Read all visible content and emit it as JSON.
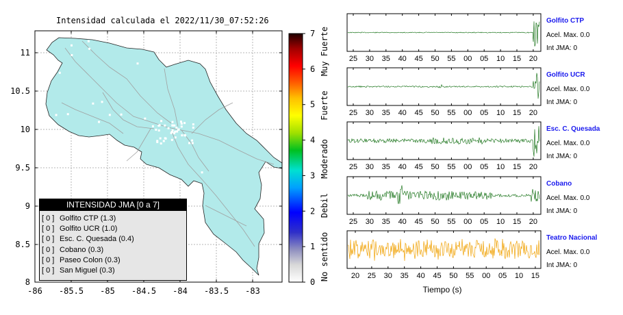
{
  "map": {
    "title": "Intensidad calculada el 2022/11/30_07:52:26",
    "x_ticks": [
      "-86",
      "-85.5",
      "-85",
      "-84.5",
      "-84",
      "-83.5",
      "-83"
    ],
    "y_ticks": [
      "11",
      "10.5",
      "10",
      "9.5",
      "9",
      "8.5",
      "8"
    ],
    "land_color": "#b2eaea",
    "road_color": "#a0a0a0"
  },
  "colorbar": {
    "ticks": [
      "0",
      "1",
      "2",
      "3",
      "4",
      "5",
      "6",
      "7"
    ],
    "labels": [
      "No sentido",
      "Debil",
      "Moderado",
      "Fuerte",
      "Muy Fuerte"
    ]
  },
  "legend": {
    "title": "INTENSIDAD JMA [0 a 7]",
    "items": [
      {
        "box": "[ 0 ]",
        "label": "Golfito CTP (1.3)"
      },
      {
        "box": "[ 0 ]",
        "label": "Golfito UCR (1.0)"
      },
      {
        "box": "[ 0 ]",
        "label": "Esc. C. Quesada (0.4)"
      },
      {
        "box": "[ 0 ]",
        "label": "Cobano (0.3)"
      },
      {
        "box": "[ 0 ]",
        "label": "Paseo Colon (0.3)"
      },
      {
        "box": "[ 0 ]",
        "label": "San Miguel (0.3)"
      }
    ]
  },
  "waveforms": [
    {
      "station": "Golfito CTP",
      "accel": "Acel. Max. 0.0",
      "int": "Int JMA: 0",
      "color": "#006400",
      "ticks": [
        "25",
        "30",
        "35",
        "40",
        "45",
        "50",
        "55",
        "00",
        "05",
        "10",
        "15",
        "20"
      ]
    },
    {
      "station": "Golfito UCR",
      "accel": "Acel. Max. 0.0",
      "int": "Int JMA: 0",
      "color": "#006400",
      "ticks": [
        "25",
        "30",
        "35",
        "40",
        "45",
        "50",
        "55",
        "00",
        "05",
        "10",
        "15",
        "20"
      ]
    },
    {
      "station": "Esc. C. Quesada",
      "accel": "Acel. Max. 0.0",
      "int": "Int JMA: 0",
      "color": "#006400",
      "ticks": [
        "25",
        "30",
        "35",
        "40",
        "45",
        "50",
        "55",
        "00",
        "05",
        "10",
        "15",
        "20"
      ]
    },
    {
      "station": "Cobano",
      "accel": "Acel. Max. 0.0",
      "int": "Int JMA: 0",
      "color": "#006400",
      "ticks": [
        "25",
        "30",
        "35",
        "40",
        "45",
        "50",
        "55",
        "00",
        "05",
        "10",
        "15",
        "20"
      ]
    },
    {
      "station": "Teatro Nacional",
      "accel": "Acel. Max. 0.0",
      "int": "Int JMA: 0",
      "color": "#f0a000",
      "ticks": [
        "20",
        "25",
        "30",
        "35",
        "40",
        "45",
        "50",
        "55",
        "00",
        "05",
        "10",
        "15"
      ]
    }
  ],
  "x_axis_label": "Tiempo (s)"
}
